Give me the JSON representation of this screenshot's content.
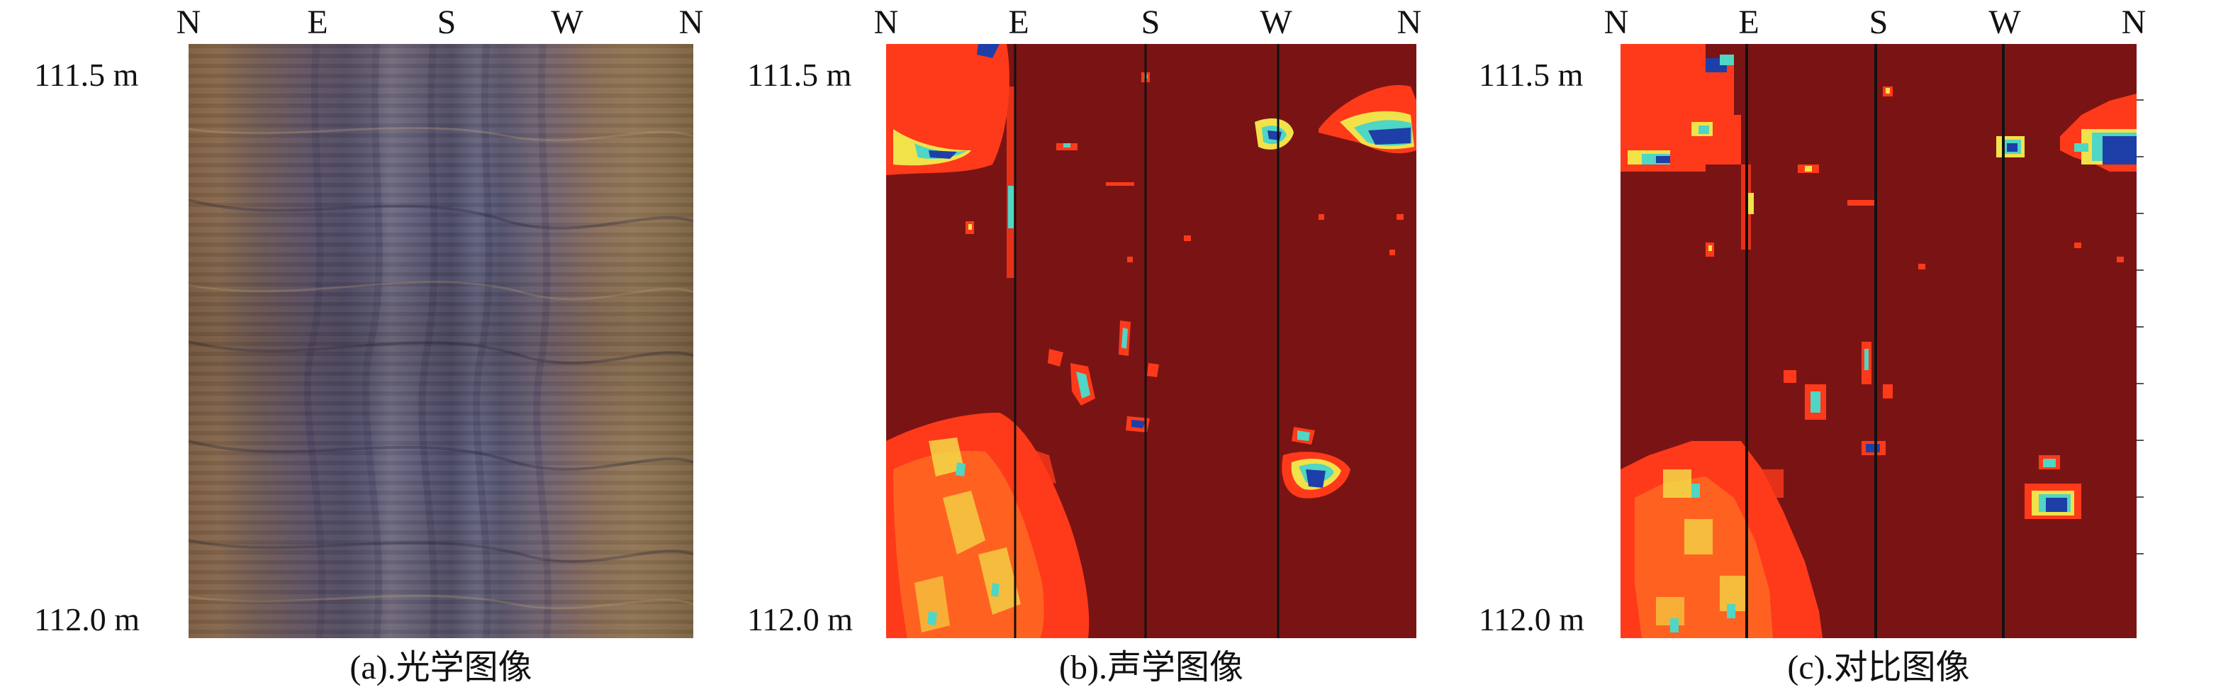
{
  "compass": [
    "N",
    "E",
    "S",
    "W",
    "N"
  ],
  "depth_top": "111.5 m",
  "depth_bottom": "112.0 m",
  "panels": [
    {
      "caption": "(a).光学图像"
    },
    {
      "caption": "(b).声学图像"
    },
    {
      "caption": "(c).对比图像"
    }
  ],
  "colors": {
    "acoustic_background": "#7a1414",
    "bright": "#ff3a1a",
    "yellow": "#f2e24a",
    "cyan": "#4fd6c4",
    "blue": "#1e3fa8",
    "divider": "#111111"
  }
}
